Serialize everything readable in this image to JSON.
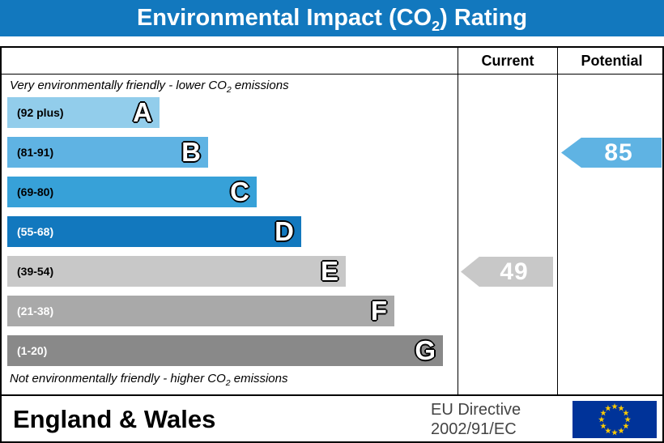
{
  "title": {
    "pre": "Environmental Impact (CO",
    "sub": "2",
    "post": ") Rating"
  },
  "colors": {
    "header_bg": "#1278be",
    "border": "#000000"
  },
  "table": {
    "current_header": "Current",
    "potential_header": "Potential",
    "top_note": {
      "pre": "Very environmentally friendly - lower CO",
      "sub": "2",
      "post": " emissions"
    },
    "bottom_note": {
      "pre": "Not environmentally friendly - higher CO",
      "sub": "2",
      "post": " emissions"
    }
  },
  "bands": [
    {
      "letter": "A",
      "range": "(92 plus)",
      "color": "#92cdeb",
      "text_color": "#000000",
      "width_pct": 33.8
    },
    {
      "letter": "B",
      "range": "(81-91)",
      "color": "#5fb3e3",
      "text_color": "#000000",
      "width_pct": 44.6
    },
    {
      "letter": "C",
      "range": "(69-80)",
      "color": "#37a1d8",
      "text_color": "#000000",
      "width_pct": 55.4
    },
    {
      "letter": "D",
      "range": "(55-68)",
      "color": "#1278be",
      "text_color": "#ffffff",
      "width_pct": 65.3
    },
    {
      "letter": "E",
      "range": "(39-54)",
      "color": "#c8c8c8",
      "text_color": "#000000",
      "width_pct": 75.2
    },
    {
      "letter": "F",
      "range": "(21-38)",
      "color": "#a9a9a9",
      "text_color": "#ffffff",
      "width_pct": 86.0
    },
    {
      "letter": "G",
      "range": "(1-20)",
      "color": "#898989",
      "text_color": "#ffffff",
      "width_pct": 96.8
    }
  ],
  "current": {
    "value": "49",
    "band": "E",
    "band_index": 4,
    "color": "#c8c8c8"
  },
  "potential": {
    "value": "85",
    "band": "B",
    "band_index": 1,
    "color": "#5fb3e3"
  },
  "footer": {
    "region": "England & Wales",
    "directive_line1": "EU Directive",
    "directive_line2": "2002/91/EC",
    "flag": {
      "bg": "#003399",
      "star_color": "#ffcc00"
    }
  },
  "chart_data": {
    "type": "bar",
    "orientation": "horizontal",
    "title": "Environmental Impact (CO2) Rating",
    "categories": [
      "A",
      "B",
      "C",
      "D",
      "E",
      "F",
      "G"
    ],
    "band_ranges": [
      "92 plus",
      "81-91",
      "69-80",
      "55-68",
      "39-54",
      "21-38",
      "1-20"
    ],
    "bar_lengths_pct": [
      33.8,
      44.6,
      55.4,
      65.3,
      75.2,
      86.0,
      96.8
    ],
    "top_label": "Very environmentally friendly - lower CO2 emissions",
    "bottom_label": "Not environmentally friendly - higher CO2 emissions",
    "markers": [
      {
        "name": "Current",
        "value": 49,
        "band": "E"
      },
      {
        "name": "Potential",
        "value": 85,
        "band": "B"
      }
    ],
    "legend_position": "none",
    "grid": false
  }
}
